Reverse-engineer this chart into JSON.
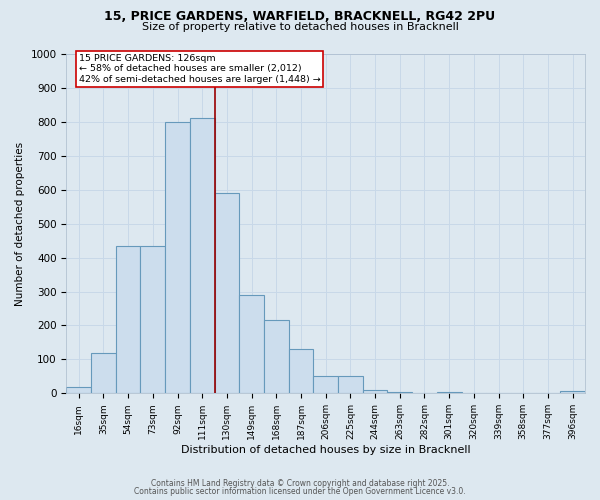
{
  "title1": "15, PRICE GARDENS, WARFIELD, BRACKNELL, RG42 2PU",
  "title2": "Size of property relative to detached houses in Bracknell",
  "xlabel": "Distribution of detached houses by size in Bracknell",
  "ylabel": "Number of detached properties",
  "categories": [
    "16sqm",
    "35sqm",
    "54sqm",
    "73sqm",
    "92sqm",
    "111sqm",
    "130sqm",
    "149sqm",
    "168sqm",
    "187sqm",
    "206sqm",
    "225sqm",
    "244sqm",
    "263sqm",
    "282sqm",
    "301sqm",
    "320sqm",
    "339sqm",
    "358sqm",
    "377sqm",
    "396sqm"
  ],
  "values": [
    18,
    120,
    435,
    435,
    800,
    810,
    590,
    290,
    215,
    130,
    50,
    50,
    10,
    5,
    0,
    5,
    0,
    0,
    0,
    0,
    8
  ],
  "bar_color": "#ccdded",
  "bar_edge_color": "#6699bb",
  "vline_color": "#990000",
  "annotation_text": "15 PRICE GARDENS: 126sqm\n← 58% of detached houses are smaller (2,012)\n42% of semi-detached houses are larger (1,448) →",
  "annotation_box_color": "#ffffff",
  "annotation_box_edge": "#cc0000",
  "ylim": [
    0,
    1000
  ],
  "yticks": [
    0,
    100,
    200,
    300,
    400,
    500,
    600,
    700,
    800,
    900,
    1000
  ],
  "grid_color": "#c8d8e8",
  "background_color": "#dde8f0",
  "footer1": "Contains HM Land Registry data © Crown copyright and database right 2025.",
  "footer2": "Contains public sector information licensed under the Open Government Licence v3.0."
}
